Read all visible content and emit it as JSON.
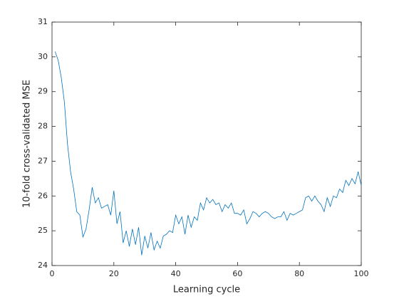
{
  "chart_data": {
    "type": "line",
    "x_label": "Learning cycle",
    "y_label": "10-fold cross-validated MSE",
    "x": [
      1,
      2,
      3,
      4,
      5,
      6,
      7,
      8,
      9,
      10,
      11,
      12,
      13,
      14,
      15,
      16,
      17,
      18,
      19,
      20,
      21,
      22,
      23,
      24,
      25,
      26,
      27,
      28,
      29,
      30,
      31,
      32,
      33,
      34,
      35,
      36,
      37,
      38,
      39,
      40,
      41,
      42,
      43,
      44,
      45,
      46,
      47,
      48,
      49,
      50,
      51,
      52,
      53,
      54,
      55,
      56,
      57,
      58,
      59,
      60,
      61,
      62,
      63,
      64,
      65,
      66,
      67,
      68,
      69,
      70,
      71,
      72,
      73,
      74,
      75,
      76,
      77,
      78,
      79,
      80,
      81,
      82,
      83,
      84,
      85,
      86,
      87,
      88,
      89,
      90,
      91,
      92,
      93,
      94,
      95,
      96,
      97,
      98,
      99,
      100
    ],
    "series": [
      {
        "name": "MSE",
        "color": "#0072bd",
        "values": [
          30.15,
          29.9,
          29.4,
          28.7,
          27.5,
          26.7,
          26.2,
          25.55,
          25.45,
          24.82,
          25.05,
          25.6,
          26.25,
          25.8,
          25.95,
          25.65,
          25.7,
          25.75,
          25.45,
          26.15,
          25.2,
          25.55,
          24.65,
          25.0,
          24.55,
          25.05,
          24.6,
          25.1,
          24.3,
          24.85,
          24.5,
          24.95,
          24.45,
          24.7,
          24.5,
          24.85,
          24.9,
          25.0,
          24.95,
          25.45,
          25.2,
          25.4,
          24.9,
          25.45,
          25.1,
          25.4,
          25.3,
          25.8,
          25.6,
          25.95,
          25.8,
          25.9,
          25.75,
          25.8,
          25.55,
          25.75,
          25.65,
          25.8,
          25.5,
          25.5,
          25.45,
          25.6,
          25.2,
          25.35,
          25.55,
          25.5,
          25.4,
          25.5,
          25.55,
          25.5,
          25.4,
          25.35,
          25.4,
          25.4,
          25.55,
          25.3,
          25.5,
          25.45,
          25.5,
          25.55,
          25.6,
          25.95,
          26.0,
          25.85,
          26.0,
          25.85,
          25.75,
          25.55,
          25.95,
          25.7,
          26.0,
          25.95,
          26.2,
          26.1,
          26.45,
          26.3,
          26.5,
          26.35,
          26.7,
          26.3
        ]
      }
    ],
    "xlim": [
      0,
      100
    ],
    "xticks": [
      0,
      20,
      40,
      60,
      80,
      100
    ],
    "ylim": [
      24,
      31
    ],
    "yticks": [
      24,
      25,
      26,
      27,
      28,
      29,
      30,
      31
    ],
    "grid": false
  }
}
